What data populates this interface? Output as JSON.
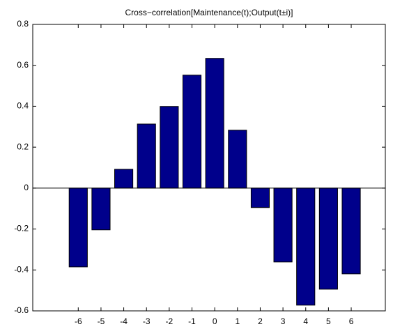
{
  "chart_data": {
    "type": "bar",
    "title": "Cross−correlation[Maintenance(t);Output(t±i)]",
    "x": [
      -6,
      -5,
      -4,
      -3,
      -2,
      -1,
      0,
      1,
      2,
      3,
      4,
      5,
      6
    ],
    "values": [
      -0.385,
      -0.204,
      0.092,
      0.313,
      0.399,
      0.552,
      0.634,
      0.283,
      -0.095,
      -0.361,
      -0.572,
      -0.494,
      -0.419
    ],
    "color": "#00008b",
    "xlim": [
      -8,
      7.5
    ],
    "xticks": [
      -6,
      -5,
      -4,
      -3,
      -2,
      -1,
      0,
      1,
      2,
      3,
      4,
      5,
      6
    ],
    "ylim": [
      -0.6,
      0.8
    ],
    "yticks": [
      -0.6,
      -0.4,
      -0.2,
      0,
      0.2,
      0.4,
      0.6,
      0.8
    ]
  }
}
